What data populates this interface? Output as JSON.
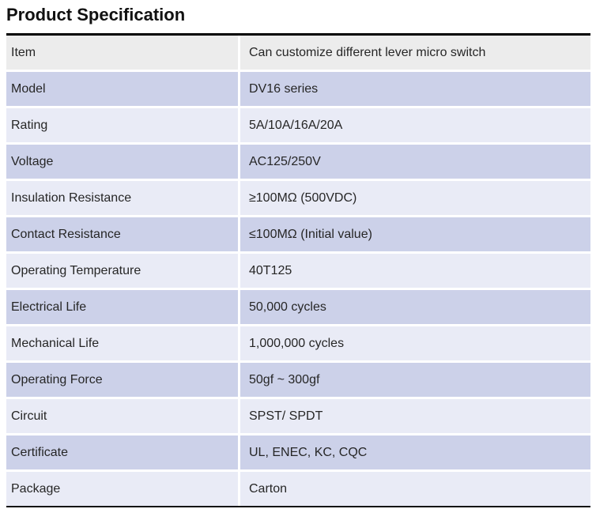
{
  "page": {
    "title": "Product Specification"
  },
  "spec_table": {
    "rows": [
      {
        "label": "Item",
        "value": "Can customize different lever micro switch"
      },
      {
        "label": "Model",
        "value": "DV16 series"
      },
      {
        "label": "Rating",
        "value": "5A/10A/16A/20A"
      },
      {
        "label": "Voltage",
        "value": "AC125/250V"
      },
      {
        "label": "Insulation Resistance",
        "value": "≥100MΩ (500VDC)"
      },
      {
        "label": "Contact Resistance",
        "value": "≤100MΩ (Initial value)"
      },
      {
        "label": "Operating Temperature",
        "value": "40T125"
      },
      {
        "label": "Electrical Life",
        "value": "50,000 cycles"
      },
      {
        "label": "Mechanical Life",
        "value": "1,000,000 cycles"
      },
      {
        "label": "Operating Force",
        "value": "50gf ~ 300gf"
      },
      {
        "label": "Circuit",
        "value": "SPST/ SPDT"
      },
      {
        "label": "Certificate",
        "value": "UL, ENEC, KC, CQC"
      },
      {
        "label": "Package",
        "value": "Carton"
      }
    ],
    "colors": {
      "header_row_bg": "#ececec",
      "band_dark_bg": "#ccd1e9",
      "band_light_bg": "#e9ebf6",
      "border_top": "#000000",
      "border_bottom": "#141414",
      "text": "#262626"
    }
  }
}
